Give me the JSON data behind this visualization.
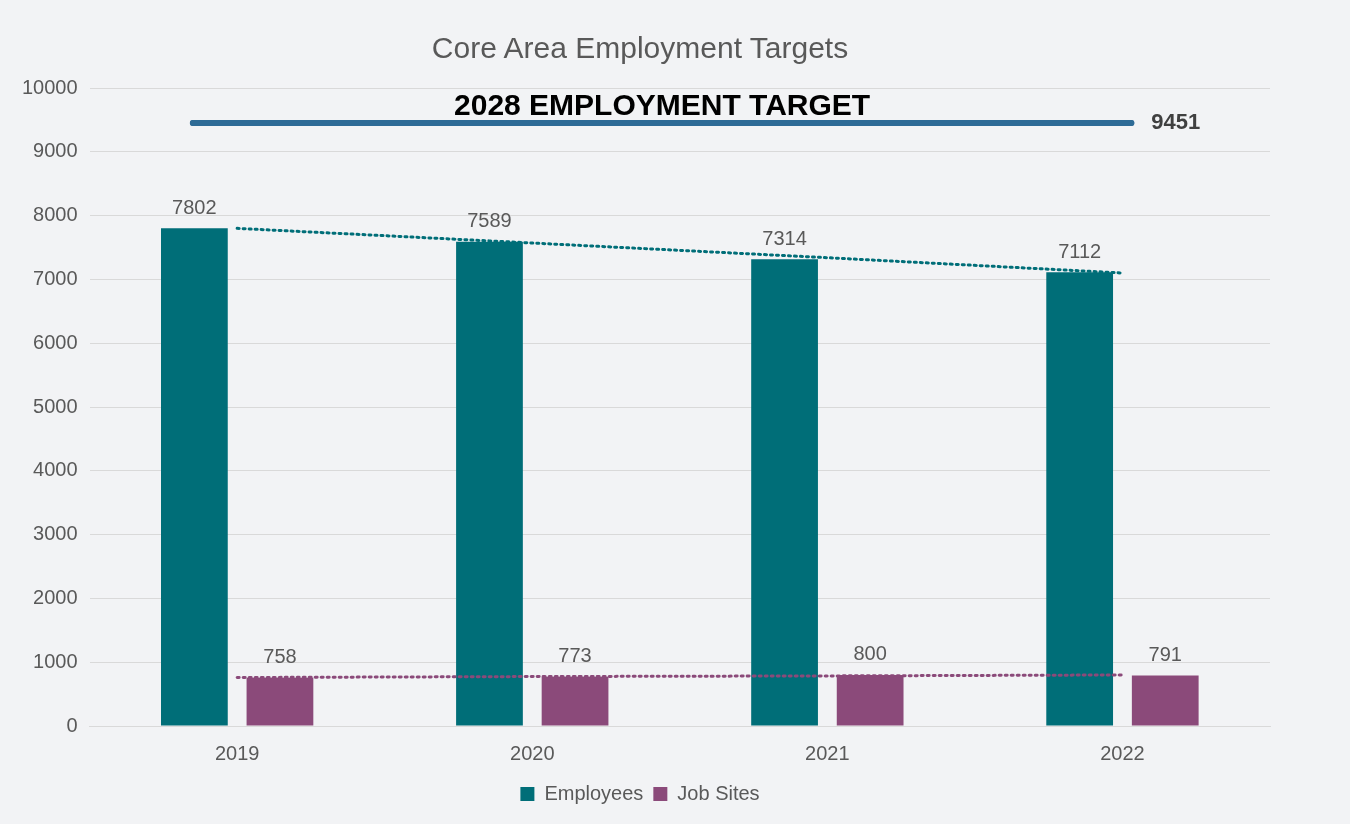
{
  "chart_data": {
    "type": "bar",
    "title": "Core Area Employment Targets",
    "categories": [
      "2019",
      "2020",
      "2021",
      "2022"
    ],
    "series": [
      {
        "name": "Employees",
        "color": "#006e78",
        "values": [
          7802,
          7589,
          7314,
          7112
        ],
        "value_labels": [
          "7802",
          "7589",
          "7314",
          "7112"
        ]
      },
      {
        "name": "Job Sites",
        "color": "#8b4a7a",
        "values": [
          758,
          773,
          800,
          791
        ],
        "value_labels": [
          "758",
          "773",
          "800",
          "791"
        ]
      },
      {
        "type": "line",
        "color": "#006e78",
        "line_style": "dotted",
        "marker": "none",
        "values": [
          7800,
          7570,
          7340,
          7100
        ]
      },
      {
        "type": "line",
        "color": "#8b4a7a",
        "line_style": "dotted",
        "marker": "none",
        "values": [
          760,
          775,
          785,
          800
        ]
      }
    ],
    "ylim": [
      0,
      10000
    ],
    "yticks": [
      0,
      1000,
      2000,
      3000,
      4000,
      5000,
      6000,
      7000,
      8000,
      9000,
      10000
    ],
    "grid": "y",
    "legend": "bottom",
    "ref_lines": [
      {
        "axis": "y",
        "value": 9451,
        "label": "2028 EMPLOYMENT TARGET",
        "color": "#2e6b96",
        "line_style": "solid"
      }
    ],
    "annotations": [
      {
        "text": "9451",
        "x": "2022",
        "y": 9451
      }
    ]
  }
}
